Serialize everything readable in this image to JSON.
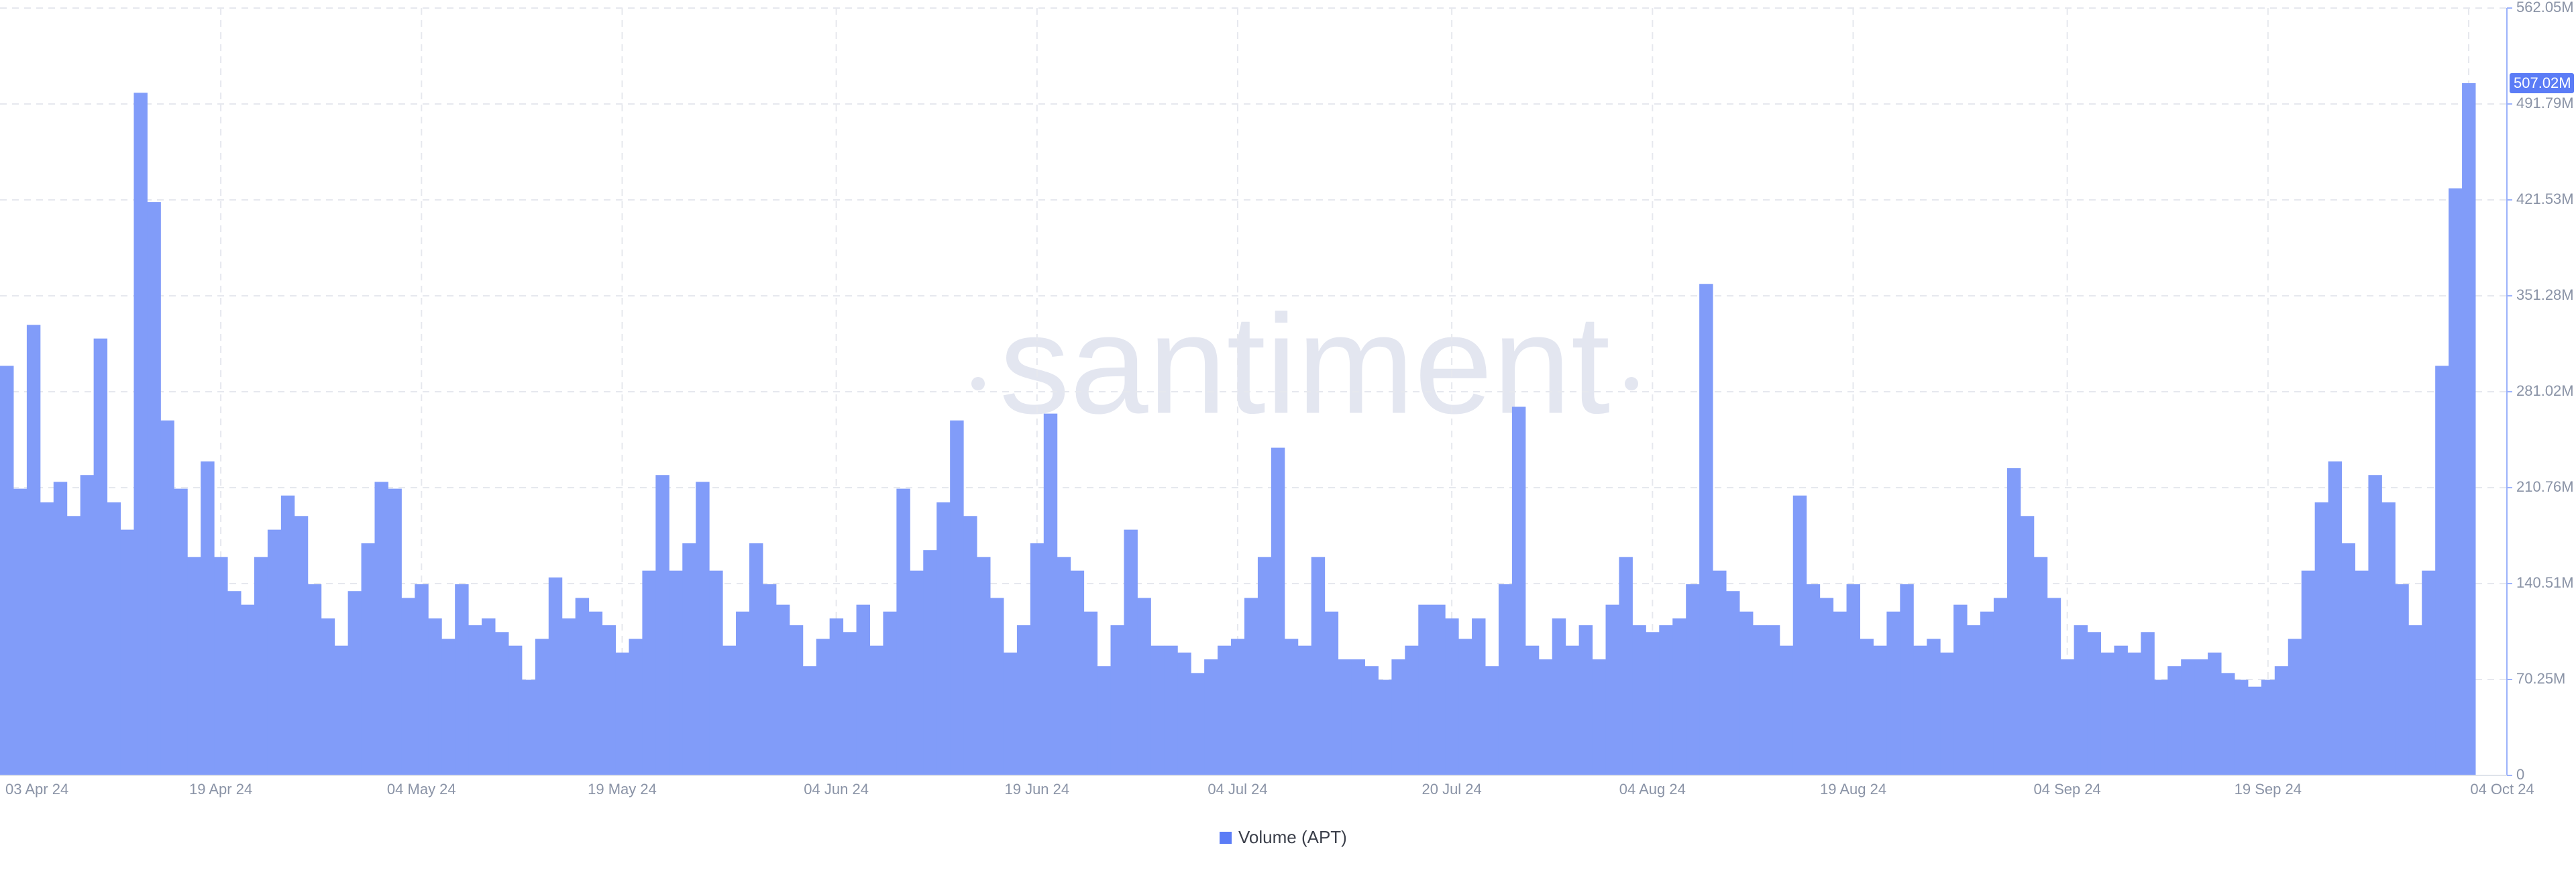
{
  "chart_data": {
    "type": "bar",
    "watermark": "santiment",
    "categories": [
      "03 Apr 24",
      null,
      null,
      null,
      null,
      null,
      null,
      null,
      null,
      null,
      null,
      null,
      null,
      null,
      null,
      null,
      "19 Apr 24",
      null,
      null,
      null,
      null,
      null,
      null,
      null,
      null,
      null,
      null,
      null,
      null,
      null,
      null,
      "04 May 24",
      null,
      null,
      null,
      null,
      null,
      null,
      null,
      null,
      null,
      null,
      null,
      null,
      null,
      null,
      "19 May 24",
      null,
      null,
      null,
      null,
      null,
      null,
      null,
      null,
      null,
      null,
      null,
      null,
      null,
      null,
      null,
      "04 Jun 24",
      null,
      null,
      null,
      null,
      null,
      null,
      null,
      null,
      null,
      null,
      null,
      null,
      null,
      null,
      "19 Jun 24",
      null,
      null,
      null,
      null,
      null,
      null,
      null,
      null,
      null,
      null,
      null,
      null,
      null,
      null,
      "04 Jul 24",
      null,
      null,
      null,
      null,
      null,
      null,
      null,
      null,
      null,
      null,
      null,
      null,
      null,
      null,
      null,
      "20 Jul 24",
      null,
      null,
      null,
      null,
      null,
      null,
      null,
      null,
      null,
      null,
      null,
      null,
      null,
      null,
      "04 Aug 24",
      null,
      null,
      null,
      null,
      null,
      null,
      null,
      null,
      null,
      null,
      null,
      null,
      null,
      null,
      "19 Aug 24",
      null,
      null,
      null,
      null,
      null,
      null,
      null,
      null,
      null,
      null,
      null,
      null,
      null,
      null,
      null,
      "04 Sep 24",
      null,
      null,
      null,
      null,
      null,
      null,
      null,
      null,
      null,
      null,
      null,
      null,
      null,
      null,
      "19 Sep 24",
      null,
      null,
      null,
      null,
      null,
      null,
      null,
      null,
      null,
      null,
      null,
      null,
      null,
      null,
      "04 Oct 24"
    ],
    "series": [
      {
        "name": "Volume (APT)",
        "color": "#819cf9",
        "legend_color": "#5b7cf6",
        "values": [
          300000000.0,
          210000000.0,
          330000000.0,
          200000000.0,
          215000000.0,
          190000000.0,
          220000000.0,
          320000000.0,
          200000000.0,
          180000000.0,
          500000000.0,
          420000000.0,
          260000000.0,
          210000000.0,
          160000000.0,
          230000000.0,
          160000000.0,
          135000000.0,
          125000000.0,
          160000000.0,
          180000000.0,
          205000000.0,
          190000000.0,
          140000000.0,
          115000000.0,
          95000000.0,
          135000000.0,
          170000000.0,
          215000000.0,
          210000000.0,
          130000000.0,
          140000000.0,
          115000000.0,
          100000000.0,
          140000000.0,
          110000000.0,
          115000000.0,
          105000000.0,
          95000000.0,
          70000000.0,
          100000000.0,
          145000000.0,
          115000000.0,
          130000000.0,
          120000000.0,
          110000000.0,
          90000000.0,
          100000000.0,
          150000000.0,
          220000000.0,
          150000000.0,
          170000000.0,
          215000000.0,
          150000000.0,
          95000000.0,
          120000000.0,
          170000000.0,
          140000000.0,
          125000000.0,
          110000000.0,
          80000000.0,
          100000000.0,
          115000000.0,
          105000000.0,
          125000000.0,
          95000000.0,
          120000000.0,
          210000000.0,
          150000000.0,
          165000000.0,
          200000000.0,
          260000000.0,
          190000000.0,
          160000000.0,
          130000000.0,
          90000000.0,
          110000000.0,
          170000000.0,
          265000000.0,
          160000000.0,
          150000000.0,
          120000000.0,
          80000000.0,
          110000000.0,
          180000000.0,
          130000000.0,
          95000000.0,
          95000000.0,
          90000000.0,
          75000000.0,
          85000000.0,
          95000000.0,
          100000000.0,
          130000000.0,
          160000000.0,
          240000000.0,
          100000000.0,
          95000000.0,
          160000000.0,
          120000000.0,
          85000000.0,
          85000000.0,
          80000000.0,
          70000000.0,
          85000000.0,
          95000000.0,
          125000000.0,
          125000000.0,
          115000000.0,
          100000000.0,
          115000000.0,
          80000000.0,
          140000000.0,
          270000000.0,
          95000000.0,
          85000000.0,
          115000000.0,
          95000000.0,
          110000000.0,
          85000000.0,
          125000000.0,
          160000000.0,
          110000000.0,
          105000000.0,
          110000000.0,
          115000000.0,
          140000000.0,
          360000000.0,
          150000000.0,
          135000000.0,
          120000000.0,
          110000000.0,
          110000000.0,
          95000000.0,
          205000000.0,
          140000000.0,
          130000000.0,
          120000000.0,
          140000000.0,
          100000000.0,
          95000000.0,
          120000000.0,
          140000000.0,
          95000000.0,
          100000000.0,
          90000000.0,
          125000000.0,
          110000000.0,
          120000000.0,
          130000000.0,
          225000000.0,
          190000000.0,
          160000000.0,
          130000000.0,
          85000000.0,
          110000000.0,
          105000000.0,
          90000000.0,
          95000000.0,
          90000000.0,
          105000000.0,
          70000000.0,
          80000000.0,
          85000000.0,
          85000000.0,
          90000000.0,
          75000000.0,
          70000000.0,
          65000000.0,
          70000000.0,
          80000000.0,
          100000000.0,
          150000000.0,
          200000000.0,
          230000000.0,
          170000000.0,
          150000000.0,
          220000000.0,
          200000000.0,
          140000000.0,
          110000000.0,
          150000000.0,
          300000000.0,
          430000000.0,
          507020000.0
        ]
      }
    ],
    "current_value": {
      "value": 507020000,
      "label": "507.02M"
    },
    "ylim": [
      0,
      562050000
    ],
    "yticks": [
      0,
      {
        "value": 70250000,
        "label": "70.25M"
      },
      {
        "value": 140510000,
        "label": "140.51M"
      },
      {
        "value": 210760000,
        "label": "210.76M"
      },
      {
        "value": 281020000,
        "label": "281.02M"
      },
      {
        "value": 351280000,
        "label": "351.28M"
      },
      {
        "value": 421530000,
        "label": "421.53M"
      },
      {
        "value": 491790000,
        "label": "491.79M"
      },
      {
        "value": 562050000,
        "label": "562.05M"
      }
    ],
    "grid": true,
    "legend": "bottom"
  }
}
